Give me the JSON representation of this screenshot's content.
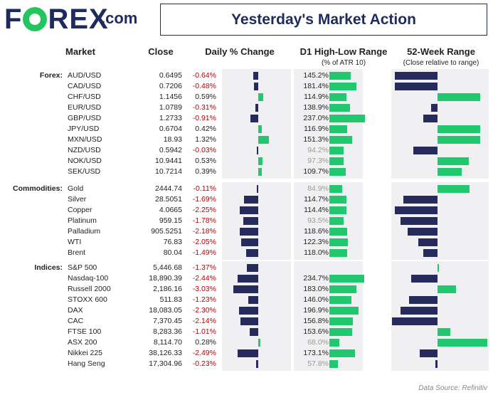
{
  "header": {
    "title": "Yesterday's Market Action",
    "logo_text": "FOREX",
    "logo_suffix": ".com"
  },
  "columns": {
    "market": "Market",
    "close": "Close",
    "daily": "Daily % Change",
    "d1": "D1 High-Low Range",
    "d1_sub": "(% of ATR 10)",
    "wk52": "52-Week Range",
    "wk52_sub": "(Close relative to range)"
  },
  "footer": "Data Source: Refinitiv",
  "colors": {
    "navy": "#262b5c",
    "green": "#22c870",
    "negative_text": "#c00000",
    "low_range_text": "#9a9a9a"
  },
  "chart_data": {
    "type": "table",
    "groups": [
      {
        "label": "Forex:",
        "rows": [
          {
            "market": "AUD/USD",
            "close": "0.6495",
            "daily": "-0.64%",
            "daily_val": -0.64,
            "d1": "145.2%",
            "d1_val": 145.2,
            "wk52": -0.6
          },
          {
            "market": "CAD/USD",
            "close": "0.7206",
            "daily": "-0.48%",
            "daily_val": -0.48,
            "d1": "181.4%",
            "d1_val": 181.4,
            "wk52": -0.6
          },
          {
            "market": "CHF/USD",
            "close": "1.1456",
            "daily": "0.59%",
            "daily_val": 0.59,
            "d1": "114.9%",
            "d1_val": 114.9,
            "wk52": 0.6
          },
          {
            "market": "EUR/USD",
            "close": "1.0789",
            "daily": "-0.31%",
            "daily_val": -0.31,
            "d1": "138.9%",
            "d1_val": 138.9,
            "wk52": -0.09
          },
          {
            "market": "GBP/USD",
            "close": "1.2733",
            "daily": "-0.91%",
            "daily_val": -0.91,
            "d1": "237.0%",
            "d1_val": 237.0,
            "wk52": -0.2
          },
          {
            "market": "JPY/USD",
            "close": "0.6704",
            "daily": "0.42%",
            "daily_val": 0.42,
            "d1": "116.9%",
            "d1_val": 116.9,
            "wk52": 0.6
          },
          {
            "market": "MXN/USD",
            "close": "18.93",
            "daily": "1.32%",
            "daily_val": 1.32,
            "d1": "151.3%",
            "d1_val": 151.3,
            "wk52": 0.6
          },
          {
            "market": "NZD/USD",
            "close": "0.5942",
            "daily": "-0.03%",
            "daily_val": -0.03,
            "d1": "94.2%",
            "d1_val": 94.2,
            "wk52": -0.34
          },
          {
            "market": "NOK/USD",
            "close": "10.9441",
            "daily": "0.53%",
            "daily_val": 0.53,
            "d1": "97.3%",
            "d1_val": 97.3,
            "wk52": 0.44
          },
          {
            "market": "SEK/USD",
            "close": "10.7214",
            "daily": "0.39%",
            "daily_val": 0.39,
            "d1": "109.7%",
            "d1_val": 109.7,
            "wk52": 0.34
          }
        ]
      },
      {
        "label": "Commodities:",
        "rows": [
          {
            "market": "Gold",
            "close": "2444.74",
            "daily": "-0.11%",
            "daily_val": -0.11,
            "d1": "84.9%",
            "d1_val": 84.9,
            "wk52": 0.45
          },
          {
            "market": "Silver",
            "close": "28.5051",
            "daily": "-1.69%",
            "daily_val": -1.69,
            "d1": "114.7%",
            "d1_val": 114.7,
            "wk52": -0.48
          },
          {
            "market": "Copper",
            "close": "4.0665",
            "daily": "-2.25%",
            "daily_val": -2.25,
            "d1": "114.4%",
            "d1_val": 114.4,
            "wk52": -0.6
          },
          {
            "market": "Platinum",
            "close": "959.15",
            "daily": "-1.78%",
            "daily_val": -1.78,
            "d1": "93.5%",
            "d1_val": 93.5,
            "wk52": -0.52
          },
          {
            "market": "Palladium",
            "close": "905.5251",
            "daily": "-2.18%",
            "daily_val": -2.18,
            "d1": "118.6%",
            "d1_val": 118.6,
            "wk52": -0.42
          },
          {
            "market": "WTI",
            "close": "76.83",
            "daily": "-2.05%",
            "daily_val": -2.05,
            "d1": "122.3%",
            "d1_val": 122.3,
            "wk52": -0.27
          },
          {
            "market": "Brent",
            "close": "80.04",
            "daily": "-1.49%",
            "daily_val": -1.49,
            "d1": "118.0%",
            "d1_val": 118.0,
            "wk52": -0.2
          }
        ]
      },
      {
        "label": "Indices:",
        "rows": [
          {
            "market": "S&P 500",
            "close": "5,446.68",
            "daily": "-1.37%",
            "daily_val": -1.37,
            "d1": "",
            "d1_val": 0,
            "wk52": 0.02
          },
          {
            "market": "Nasdaq-100",
            "close": "18,890.39",
            "daily": "-2.44%",
            "daily_val": -2.44,
            "d1": "234.7%",
            "d1_val": 234.7,
            "wk52": -0.37
          },
          {
            "market": "Russell 2000",
            "close": "2,186.16",
            "daily": "-3.03%",
            "daily_val": -3.03,
            "d1": "183.0%",
            "d1_val": 183.0,
            "wk52": 0.26
          },
          {
            "market": "STOXX 600",
            "close": "511.83",
            "daily": "-1.23%",
            "daily_val": -1.23,
            "d1": "146.0%",
            "d1_val": 146.0,
            "wk52": -0.4
          },
          {
            "market": "DAX",
            "close": "18,083.05",
            "daily": "-2.30%",
            "daily_val": -2.3,
            "d1": "196.9%",
            "d1_val": 196.9,
            "wk52": -0.52
          },
          {
            "market": "CAC",
            "close": "7,370.45",
            "daily": "-2.14%",
            "daily_val": -2.14,
            "d1": "156.8%",
            "d1_val": 156.8,
            "wk52": -0.64
          },
          {
            "market": "FTSE 100",
            "close": "8,283.36",
            "daily": "-1.01%",
            "daily_val": -1.01,
            "d1": "153.6%",
            "d1_val": 153.6,
            "wk52": 0.18
          },
          {
            "market": "ASX 200",
            "close": "8,114.70",
            "daily": "0.28%",
            "daily_val": 0.28,
            "d1": "68.0%",
            "d1_val": 68.0,
            "wk52": 0.7
          },
          {
            "market": "Nikkei 225",
            "close": "38,126.33",
            "daily": "-2.49%",
            "daily_val": -2.49,
            "d1": "173.1%",
            "d1_val": 173.1,
            "wk52": -0.25
          },
          {
            "market": "Hang Seng",
            "close": "17,304.96",
            "daily": "-0.23%",
            "daily_val": -0.23,
            "d1": "57.8%",
            "d1_val": 57.8,
            "wk52": -0.03
          }
        ]
      }
    ]
  }
}
